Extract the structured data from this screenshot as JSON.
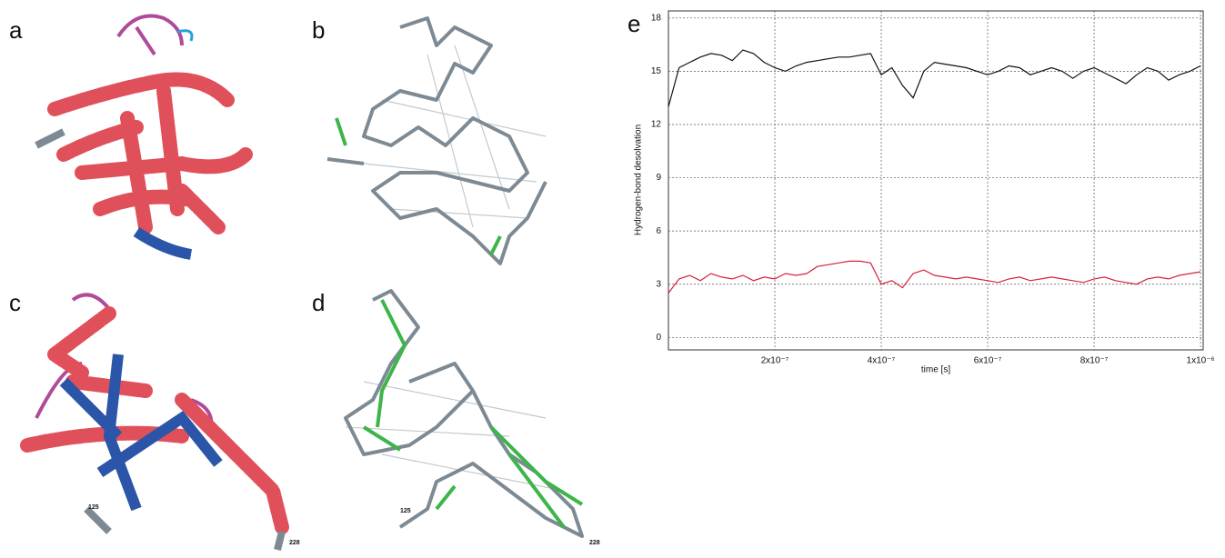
{
  "panel_labels": [
    "a",
    "b",
    "c",
    "d"
  ],
  "residue_labels": [
    "125",
    "228"
  ],
  "chart_data": {
    "type": "line",
    "panel_label": "e",
    "x_label": "time [s]",
    "y_label": "Hydrogen-bond desolvation",
    "x": [
      0,
      2e-08,
      4e-08,
      6e-08,
      8e-08,
      1e-07,
      1.2e-07,
      1.4e-07,
      1.6e-07,
      1.8e-07,
      2e-07,
      2.2e-07,
      2.4e-07,
      2.6e-07,
      2.8e-07,
      3e-07,
      3.2e-07,
      3.4e-07,
      3.6e-07,
      3.8e-07,
      4e-07,
      4.2e-07,
      4.4e-07,
      4.6e-07,
      4.8e-07,
      5e-07,
      5.2e-07,
      5.4e-07,
      5.6e-07,
      5.8e-07,
      6e-07,
      6.2e-07,
      6.4e-07,
      6.6e-07,
      6.8e-07,
      7e-07,
      7.2e-07,
      7.4e-07,
      7.6e-07,
      7.8e-07,
      8e-07,
      8.2e-07,
      8.4e-07,
      8.6e-07,
      8.8e-07,
      9e-07,
      9.2e-07,
      9.4e-07,
      9.6e-07,
      9.8e-07,
      1e-06
    ],
    "series": [
      {
        "color": "#111111",
        "values": [
          13,
          15.2,
          15.5,
          15.8,
          16,
          15.9,
          15.6,
          16.2,
          16,
          15.5,
          15.2,
          15,
          15.3,
          15.5,
          15.6,
          15.7,
          15.8,
          15.8,
          15.9,
          16,
          14.8,
          15.2,
          14.2,
          13.5,
          15,
          15.5,
          15.4,
          15.3,
          15.2,
          15,
          14.8,
          15,
          15.3,
          15.2,
          14.8,
          15,
          15.2,
          15,
          14.6,
          15,
          15.2,
          14.9,
          14.6,
          14.3,
          14.8,
          15.2,
          15,
          14.5,
          14.8,
          15,
          15.3
        ]
      },
      {
        "color": "#d8203a",
        "values": [
          2.5,
          3.3,
          3.5,
          3.2,
          3.6,
          3.4,
          3.3,
          3.5,
          3.2,
          3.4,
          3.3,
          3.6,
          3.5,
          3.6,
          4,
          4.1,
          4.2,
          4.3,
          4.3,
          4.2,
          3,
          3.2,
          2.8,
          3.6,
          3.8,
          3.5,
          3.4,
          3.3,
          3.4,
          3.3,
          3.2,
          3.1,
          3.3,
          3.4,
          3.2,
          3.3,
          3.4,
          3.3,
          3.2,
          3.1,
          3.3,
          3.4,
          3.2,
          3.1,
          3,
          3.3,
          3.4,
          3.3,
          3.5,
          3.6,
          3.7
        ]
      }
    ],
    "xlim": [
      0,
      1.005e-06
    ],
    "ylim": [
      -0.7,
      18.4
    ],
    "xticks": [
      {
        "value": 2e-07,
        "label": "2x10⁻⁷"
      },
      {
        "value": 4e-07,
        "label": "4x10⁻⁷"
      },
      {
        "value": 6e-07,
        "label": "6x10⁻⁷"
      },
      {
        "value": 8e-07,
        "label": "8x10⁻⁷"
      },
      {
        "value": 1e-06,
        "label": "1x10⁻⁶"
      }
    ],
    "yticks": [
      0,
      3,
      6,
      9,
      12,
      15,
      18
    ],
    "grid": true
  }
}
